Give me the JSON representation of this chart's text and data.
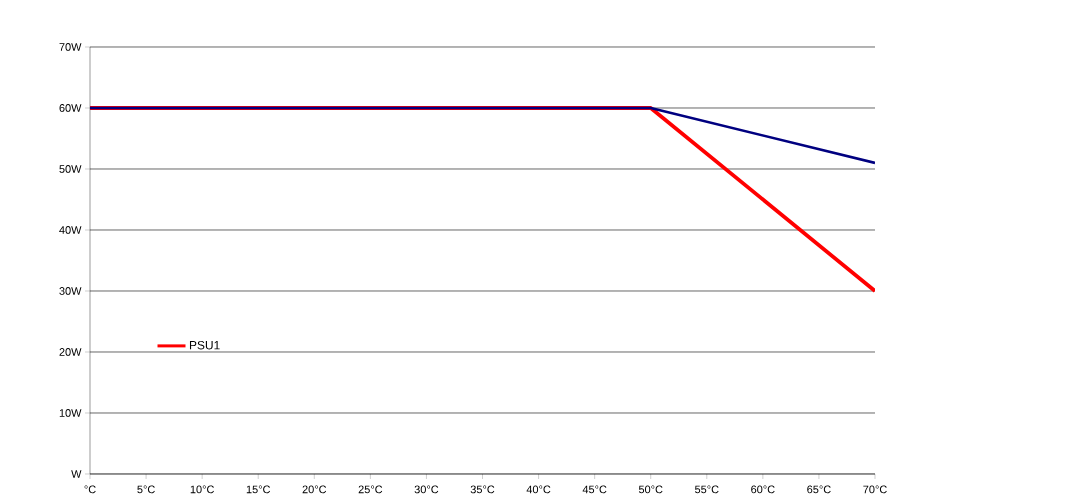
{
  "chart_data": {
    "type": "line",
    "x": [
      0,
      50,
      70
    ],
    "series": [
      {
        "name": "PSU1",
        "color": "#ff0000",
        "values": [
          60,
          60,
          30
        ]
      },
      {
        "color": "#000080",
        "values": [
          60,
          60,
          51
        ]
      }
    ],
    "xlim": [
      0,
      70
    ],
    "xticks": [
      {
        "value": 0,
        "label": "°C"
      },
      {
        "value": 5,
        "label": "5°C"
      },
      {
        "value": 10,
        "label": "10°C"
      },
      {
        "value": 15,
        "label": "15°C"
      },
      {
        "value": 20,
        "label": "20°C"
      },
      {
        "value": 25,
        "label": "25°C"
      },
      {
        "value": 30,
        "label": "30°C"
      },
      {
        "value": 35,
        "label": "35°C"
      },
      {
        "value": 40,
        "label": "40°C"
      },
      {
        "value": 45,
        "label": "45°C"
      },
      {
        "value": 50,
        "label": "50°C"
      },
      {
        "value": 55,
        "label": "55°C"
      },
      {
        "value": 60,
        "label": "60°C"
      },
      {
        "value": 65,
        "label": "65°C"
      },
      {
        "value": 70,
        "label": "70°C"
      }
    ],
    "ylim": [
      0,
      70
    ],
    "yticks": [
      {
        "value": 0,
        "label": "W"
      },
      {
        "value": 10,
        "label": "10W"
      },
      {
        "value": 20,
        "label": "20W"
      },
      {
        "value": 30,
        "label": "30W"
      },
      {
        "value": 40,
        "label": "40W"
      },
      {
        "value": 50,
        "label": "50W"
      },
      {
        "value": 60,
        "label": "60W"
      },
      {
        "value": 70,
        "label": "70W"
      }
    ],
    "grid": "y",
    "legend": "left",
    "marker": "none",
    "line_style": "solid"
  }
}
